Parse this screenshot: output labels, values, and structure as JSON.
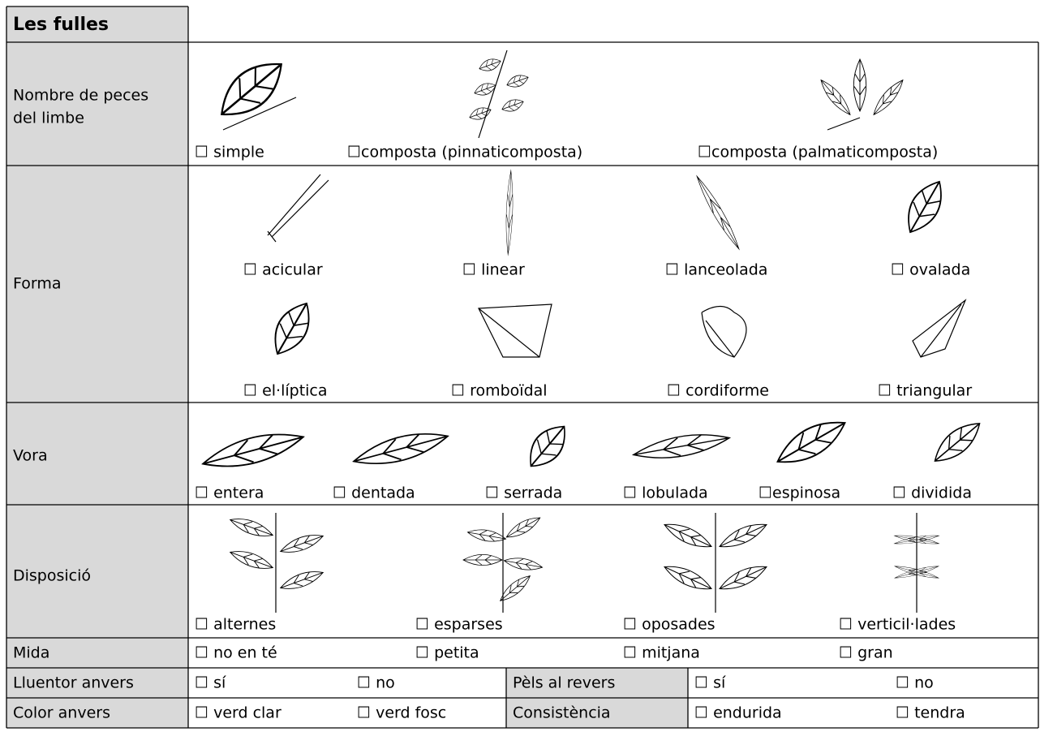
{
  "table": {
    "title": "Les fulles",
    "rows": [
      {
        "label": [
          "Nombre de peces",
          "del limbe"
        ],
        "options": [
          "☐ simple",
          "☐composta (pinnaticomposta)",
          "☐composta (palmaticomposta)"
        ]
      },
      {
        "label": [
          "Forma"
        ],
        "options": [
          "☐ acicular",
          "☐ linear",
          "☐ lanceolada",
          "☐ ovalada",
          "☐ el·líptica",
          "☐ romboïdal",
          "☐ cordiforme",
          "☐ triangular"
        ]
      },
      {
        "label": [
          "Vora"
        ],
        "options": [
          "☐ entera",
          "☐ dentada",
          "☐ serrada",
          "☐ lobulada",
          "☐espinosa",
          "☐ dividida"
        ]
      },
      {
        "label": [
          "Disposició"
        ],
        "options": [
          "☐ alternes",
          "☐ esparses",
          "☐ oposades",
          "☐ verticil·lades"
        ]
      },
      {
        "label": [
          "Mida"
        ],
        "options": [
          "☐ no en té",
          "☐ petita",
          "☐ mitjana",
          "☐ gran"
        ]
      }
    ],
    "split_rows": [
      {
        "label": "Lluentor anvers",
        "options": [
          "☐ sí",
          "☐ no"
        ],
        "label2": "Pèls al revers",
        "options2": [
          "☐ sí",
          "☐ no"
        ]
      },
      {
        "label": "Color anvers",
        "options": [
          "☐ verd clar",
          "☐ verd fosc"
        ],
        "label2": "Consistència",
        "options2": [
          "☐ endurida",
          "☐ tendra"
        ]
      }
    ]
  }
}
